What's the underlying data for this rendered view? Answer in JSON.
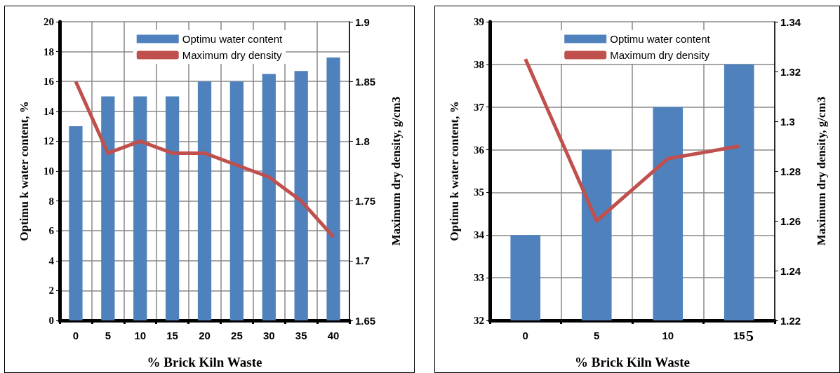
{
  "chart_data": [
    {
      "type": "bar",
      "categories": [
        "0",
        "5",
        "10",
        "15",
        "20",
        "25",
        "30",
        "35",
        "40"
      ],
      "xlabel": "% Brick Kiln Waste",
      "ylabel": "Optimu k water content, %",
      "y2label": "Maximum dry density, g/cm3",
      "series": [
        {
          "name": "Optimu water content",
          "color": "#4f81bd",
          "values": [
            13,
            15,
            15,
            15,
            16,
            16,
            16.5,
            16.7,
            17.6
          ]
        },
        {
          "name": "Maximum dry density",
          "type": "line",
          "axis": "y2",
          "color": "#c0504d",
          "values": [
            1.85,
            1.79,
            1.8,
            1.79,
            1.79,
            1.78,
            1.77,
            1.75,
            1.72
          ]
        }
      ],
      "ylim": [
        0,
        20
      ],
      "yticks": [
        0,
        2,
        4,
        6,
        8,
        10,
        12,
        14,
        16,
        18,
        20
      ],
      "y2lim": [
        1.65,
        1.9
      ],
      "y2ticks": [
        1.65,
        1.7,
        1.75,
        1.8,
        1.85,
        1.9
      ],
      "grid": true,
      "legend": "top",
      "marker": "none"
    },
    {
      "type": "bar",
      "categories": [
        "0",
        "5",
        "10",
        "15"
      ],
      "xlabel": "% Brick Kiln Waste",
      "ylabel": "Optimu k water content, %",
      "y2label": "Maximum dry density, g/cm3",
      "series": [
        {
          "name": "Optimu water content",
          "color": "#4f81bd",
          "values": [
            34,
            36,
            37,
            38
          ]
        },
        {
          "name": "Maximum dry density",
          "type": "line",
          "axis": "y2",
          "color": "#c0504d",
          "values": [
            1.325,
            1.26,
            1.285,
            1.29
          ]
        }
      ],
      "ylim": [
        32,
        39
      ],
      "yticks": [
        32,
        33,
        34,
        35,
        36,
        37,
        38,
        39
      ],
      "y2lim": [
        1.22,
        1.34
      ],
      "y2ticks": [
        1.22,
        1.24,
        1.26,
        1.28,
        1.3,
        1.32,
        1.34
      ],
      "grid": true,
      "legend": "top",
      "marker": "none",
      "annotations": [
        "5"
      ]
    }
  ]
}
